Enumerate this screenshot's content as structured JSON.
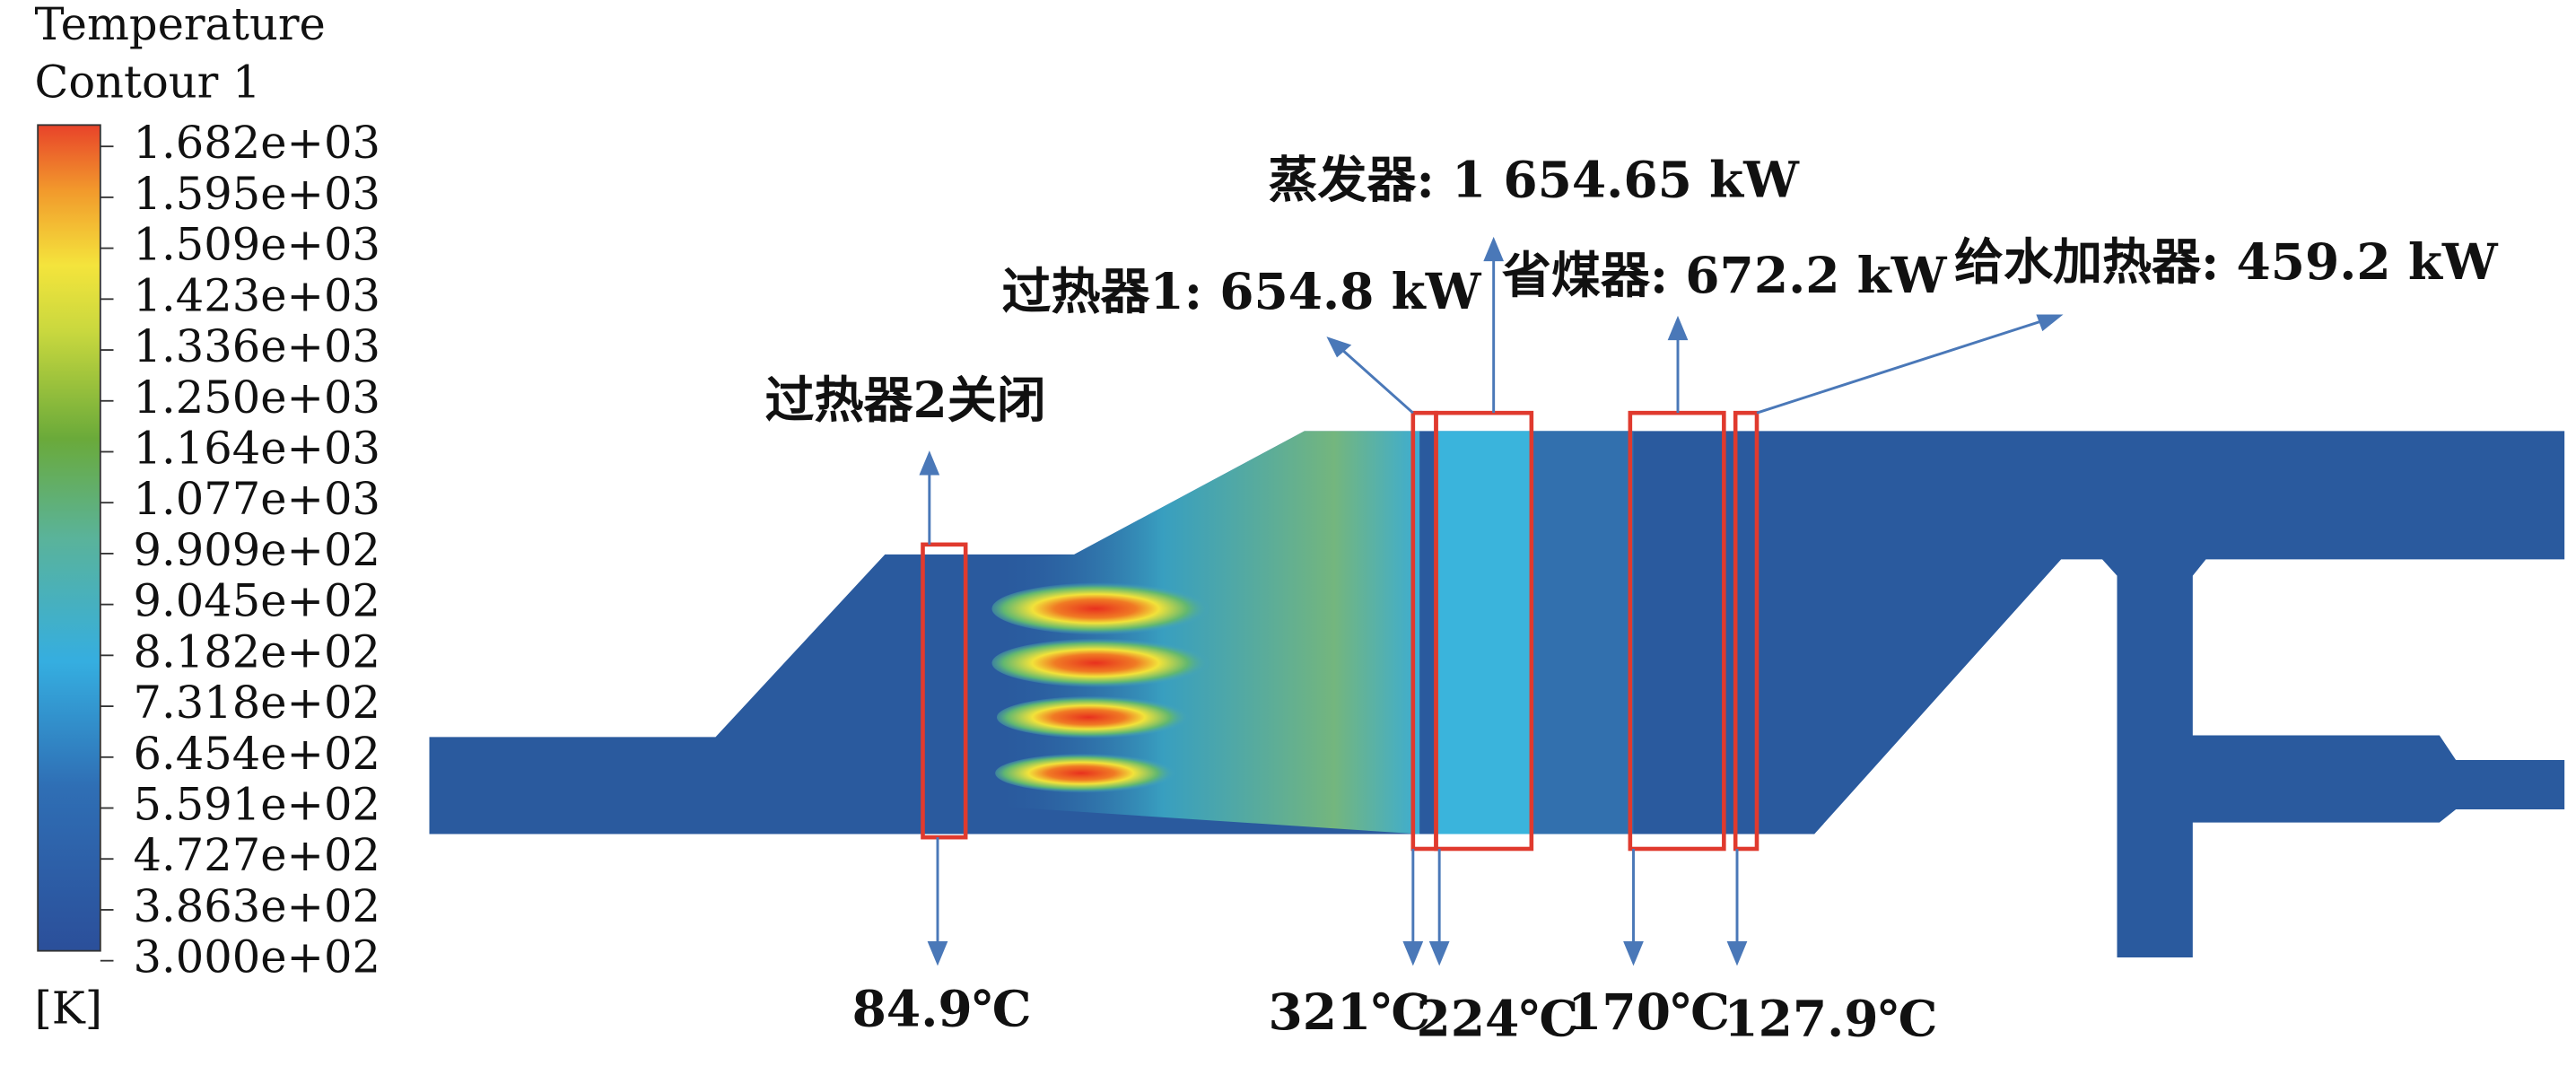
{
  "legend": {
    "title": "Temperature",
    "subtitle": "Contour 1",
    "ticks": [
      "1.682e+03",
      "1.595e+03",
      "1.509e+03",
      "1.423e+03",
      "1.336e+03",
      "1.250e+03",
      "1.164e+03",
      "1.077e+03",
      "9.909e+02",
      "9.045e+02",
      "8.182e+02",
      "7.318e+02",
      "6.454e+02",
      "5.591e+02",
      "4.727e+02",
      "3.863e+02",
      "3.000e+02"
    ],
    "unit": "[K]"
  },
  "annotations": {
    "closed": "过热器2关闭",
    "superheater1": "过热器1: 654.8 kW",
    "evaporator": "蒸发器: 1 654.65 kW",
    "economizer": "省煤器: 672.2 kW",
    "feedwater": "给水加热器: 459.2 kW"
  },
  "temperatures": [
    "84.9℃",
    "321℃",
    "224℃",
    "170℃",
    "127.9℃"
  ]
}
